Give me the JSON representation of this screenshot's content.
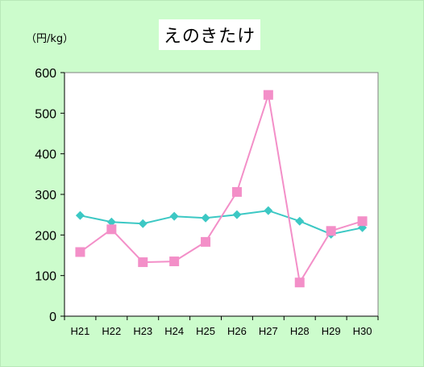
{
  "chart_data": {
    "type": "line",
    "title": "えのきたけ",
    "unit_label": "（円/kg）",
    "categories": [
      "H21",
      "H22",
      "H23",
      "H24",
      "H25",
      "H26",
      "H27",
      "H28",
      "H29",
      "H30"
    ],
    "ylim": [
      0,
      600
    ],
    "yticks": [
      0,
      100,
      200,
      300,
      400,
      500,
      600
    ],
    "grid": false,
    "series": [
      {
        "marker": "diamond",
        "color": "#3cc8c4",
        "values": [
          248,
          232,
          228,
          246,
          242,
          250,
          260,
          234,
          202,
          218
        ]
      },
      {
        "marker": "square",
        "color": "#f38fc8",
        "values": [
          158,
          214,
          133,
          135,
          183,
          306,
          545,
          83,
          210,
          234
        ]
      }
    ]
  }
}
